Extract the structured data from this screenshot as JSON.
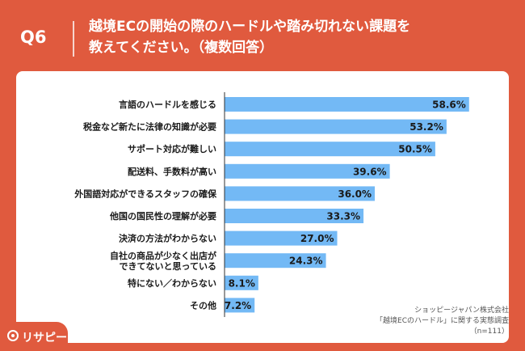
{
  "header": {
    "question": "Q6",
    "title_line1": "越境ECの開始の際のハードルや踏み切れない課題を",
    "title_line2": "教えてください。（複数回答）"
  },
  "chart_data": {
    "type": "bar",
    "orientation": "horizontal",
    "categories": [
      [
        "言語のハードルを感じる"
      ],
      [
        "税金など新たに法律の知識が必要"
      ],
      [
        "サポート対応が難しい"
      ],
      [
        "配送料、手数料が高い"
      ],
      [
        "外国語対応ができるスタッフの確保"
      ],
      [
        "他国の国民性の理解が必要"
      ],
      [
        "決済の方法がわからない"
      ],
      [
        "自社の商品が少なく出店が",
        "できてないと思っている"
      ],
      [
        "特にない／わからない"
      ],
      [
        "その他"
      ]
    ],
    "values": [
      58.6,
      53.2,
      50.5,
      39.6,
      36.0,
      33.3,
      27.0,
      24.3,
      8.1,
      7.2
    ],
    "value_labels": [
      "58.6%",
      "53.2%",
      "50.5%",
      "39.6%",
      "36.0%",
      "33.3%",
      "27.0%",
      "24.3%",
      "8.1%",
      "7.2%"
    ],
    "xlim": [
      0,
      60
    ],
    "bar_color": "#73b9f5"
  },
  "source": {
    "line1": "ショッピージャパン株式会社",
    "line2": "「越境ECのハードル」に関する実態調査",
    "line3": "（n=111）"
  },
  "logo": {
    "icon": "location-pin-icon",
    "text": "リサピー"
  },
  "colors": {
    "background": "#e05a3e",
    "panel": "#ffffff",
    "axis": "#333333"
  }
}
